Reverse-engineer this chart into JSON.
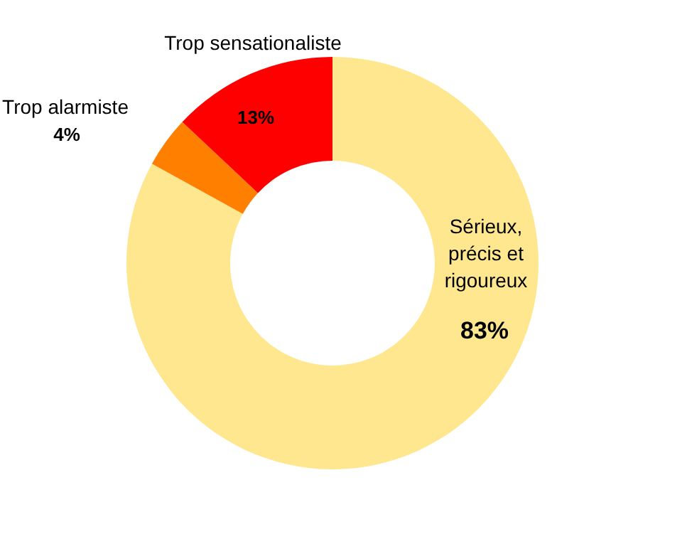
{
  "chart_data": {
    "type": "donut",
    "categories": [
      "Sérieux, précis et rigoureux",
      "Trop alarmiste",
      "Trop sensationaliste"
    ],
    "values": [
      83,
      4,
      13
    ],
    "colors": [
      "#fee78e",
      "#ff7f00",
      "#ff0000"
    ],
    "value_labels": [
      "83%",
      "4%",
      "13%"
    ]
  }
}
